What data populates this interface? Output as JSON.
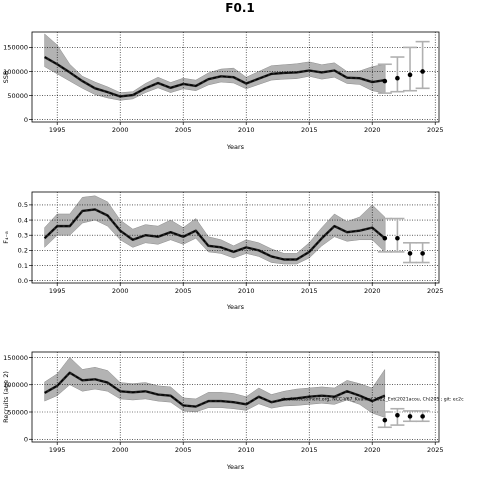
{
  "title": "F0.1",
  "watermark": "stockassessment.org, NCC-V67_Kvalitet 2022_Ext(2021acou, Ch)205 ; git: ec2c",
  "colors": {
    "band": "#b3b3b3",
    "band_edge": "#8c8c8c",
    "line": "#222222",
    "forecast_bar": "#b0b0b0",
    "forecast_point": "#000000",
    "grid": "#000000"
  },
  "chart_data": [
    {
      "type": "line",
      "name": "ssb",
      "ylabel": "SSB",
      "xlabel": "Years",
      "xlim": [
        1993,
        2025.3
      ],
      "ylim": [
        -5000,
        182000
      ],
      "x_ticks": [
        1995,
        2000,
        2005,
        2010,
        2015,
        2020,
        2025
      ],
      "y_ticks": [
        0,
        50000,
        100000,
        150000
      ],
      "y_tick_labels": [
        "0",
        "50000",
        "100000",
        "150000"
      ],
      "grid": true,
      "years": [
        1994,
        1995,
        1996,
        1997,
        1998,
        1999,
        2000,
        2001,
        2002,
        2003,
        2004,
        2005,
        2006,
        2007,
        2008,
        2009,
        2010,
        2011,
        2012,
        2013,
        2014,
        2015,
        2016,
        2017,
        2018,
        2019,
        2020,
        2021
      ],
      "estimate": [
        130000,
        115000,
        98000,
        80000,
        65000,
        57000,
        48000,
        51000,
        65000,
        76000,
        66000,
        74000,
        70000,
        84000,
        90000,
        88000,
        75000,
        85000,
        95000,
        97000,
        98000,
        102000,
        98000,
        102000,
        87000,
        86000,
        78000,
        82000
      ],
      "lower": [
        110000,
        95000,
        80000,
        65000,
        52000,
        45000,
        40000,
        43000,
        56000,
        66000,
        56000,
        64000,
        60000,
        72000,
        78000,
        76000,
        64000,
        73000,
        82000,
        84000,
        85000,
        90000,
        84000,
        88000,
        75000,
        73000,
        60000,
        55000
      ],
      "upper": [
        178000,
        155000,
        115000,
        90000,
        78000,
        68000,
        56000,
        58000,
        75000,
        88000,
        77000,
        86000,
        82000,
        97000,
        105000,
        107000,
        88000,
        100000,
        112000,
        114000,
        116000,
        120000,
        114000,
        118000,
        100000,
        101000,
        110000,
        115000
      ],
      "forecast": {
        "years": [
          2021,
          2022,
          2023,
          2024
        ],
        "estimate": [
          80000,
          86000,
          93000,
          100000
        ],
        "lower": [
          55000,
          58000,
          60000,
          65000
        ],
        "upper": [
          115000,
          130000,
          150000,
          162000
        ]
      }
    },
    {
      "type": "line",
      "name": "fbar",
      "ylabel": "F₄₋₈",
      "xlabel": "Years",
      "xlim": [
        1993,
        2025.3
      ],
      "ylim": [
        -0.015,
        0.585
      ],
      "x_ticks": [
        1995,
        2000,
        2005,
        2010,
        2015,
        2020,
        2025
      ],
      "y_ticks": [
        0,
        0.1,
        0.2,
        0.3,
        0.4,
        0.5
      ],
      "y_tick_labels": [
        "0.0",
        "0.1",
        "0.2",
        "0.3",
        "0.4",
        "0.5"
      ],
      "grid": true,
      "years": [
        1994,
        1995,
        1996,
        1997,
        1998,
        1999,
        2000,
        2001,
        2002,
        2003,
        2004,
        2005,
        2006,
        2007,
        2008,
        2009,
        2010,
        2011,
        2012,
        2013,
        2014,
        2015,
        2016,
        2017,
        2018,
        2019,
        2020,
        2021
      ],
      "estimate": [
        0.28,
        0.36,
        0.36,
        0.46,
        0.47,
        0.43,
        0.33,
        0.27,
        0.3,
        0.29,
        0.32,
        0.29,
        0.33,
        0.23,
        0.22,
        0.19,
        0.22,
        0.2,
        0.16,
        0.14,
        0.14,
        0.19,
        0.28,
        0.36,
        0.32,
        0.33,
        0.35,
        0.28
      ],
      "lower": [
        0.22,
        0.3,
        0.3,
        0.38,
        0.4,
        0.36,
        0.27,
        0.22,
        0.25,
        0.24,
        0.27,
        0.24,
        0.28,
        0.19,
        0.18,
        0.15,
        0.18,
        0.16,
        0.12,
        0.11,
        0.11,
        0.15,
        0.23,
        0.29,
        0.26,
        0.27,
        0.27,
        0.19
      ],
      "upper": [
        0.35,
        0.44,
        0.44,
        0.55,
        0.56,
        0.52,
        0.4,
        0.34,
        0.37,
        0.36,
        0.4,
        0.35,
        0.41,
        0.29,
        0.27,
        0.23,
        0.27,
        0.25,
        0.21,
        0.18,
        0.18,
        0.25,
        0.35,
        0.44,
        0.39,
        0.42,
        0.5,
        0.42
      ],
      "forecast": {
        "years": [
          2021,
          2022,
          2023,
          2024
        ],
        "estimate": [
          0.28,
          0.28,
          0.18,
          0.18
        ],
        "lower": [
          0.19,
          0.19,
          0.12,
          0.12
        ],
        "upper": [
          0.41,
          0.41,
          0.25,
          0.25
        ]
      }
    },
    {
      "type": "line",
      "name": "recruits",
      "ylabel": "Recruits (age 2)",
      "xlabel": "Years",
      "xlim": [
        1993,
        2025.3
      ],
      "ylim": [
        -5000,
        160000
      ],
      "x_ticks": [
        1995,
        2000,
        2005,
        2010,
        2015,
        2020,
        2025
      ],
      "y_ticks": [
        0,
        50000,
        100000,
        150000
      ],
      "y_tick_labels": [
        "0",
        "50000",
        "100000",
        "150000"
      ],
      "grid": true,
      "years": [
        1994,
        1995,
        1996,
        1997,
        1998,
        1999,
        2000,
        2001,
        2002,
        2003,
        2004,
        2005,
        2006,
        2007,
        2008,
        2009,
        2010,
        2011,
        2012,
        2013,
        2014,
        2015,
        2016,
        2017,
        2018,
        2019,
        2020,
        2021
      ],
      "estimate": [
        85000,
        98000,
        122000,
        108000,
        110000,
        104000,
        88000,
        86000,
        88000,
        82000,
        80000,
        62000,
        60000,
        70000,
        70000,
        68000,
        64000,
        78000,
        68000,
        73000,
        75000,
        78000,
        80000,
        78000,
        88000,
        80000,
        70000,
        80000
      ],
      "lower": [
        70000,
        80000,
        100000,
        88000,
        92000,
        88000,
        74000,
        72000,
        74000,
        70000,
        68000,
        52000,
        50000,
        58000,
        58000,
        56000,
        53000,
        65000,
        57000,
        61000,
        62000,
        64000,
        66000,
        64000,
        72000,
        64000,
        48000,
        40000
      ],
      "upper": [
        105000,
        120000,
        150000,
        128000,
        132000,
        126000,
        104000,
        102000,
        104000,
        98000,
        96000,
        76000,
        74000,
        86000,
        86000,
        84000,
        78000,
        94000,
        82000,
        88000,
        92000,
        94000,
        96000,
        94000,
        108000,
        102000,
        94000,
        128000
      ],
      "forecast": {
        "years": [
          2021,
          2022,
          2023,
          2024
        ],
        "estimate": [
          35000,
          44000,
          42000,
          42000
        ],
        "lower": [
          22000,
          26000,
          33000,
          33000
        ],
        "upper": [
          50000,
          56000,
          52000,
          52000
        ]
      }
    }
  ]
}
